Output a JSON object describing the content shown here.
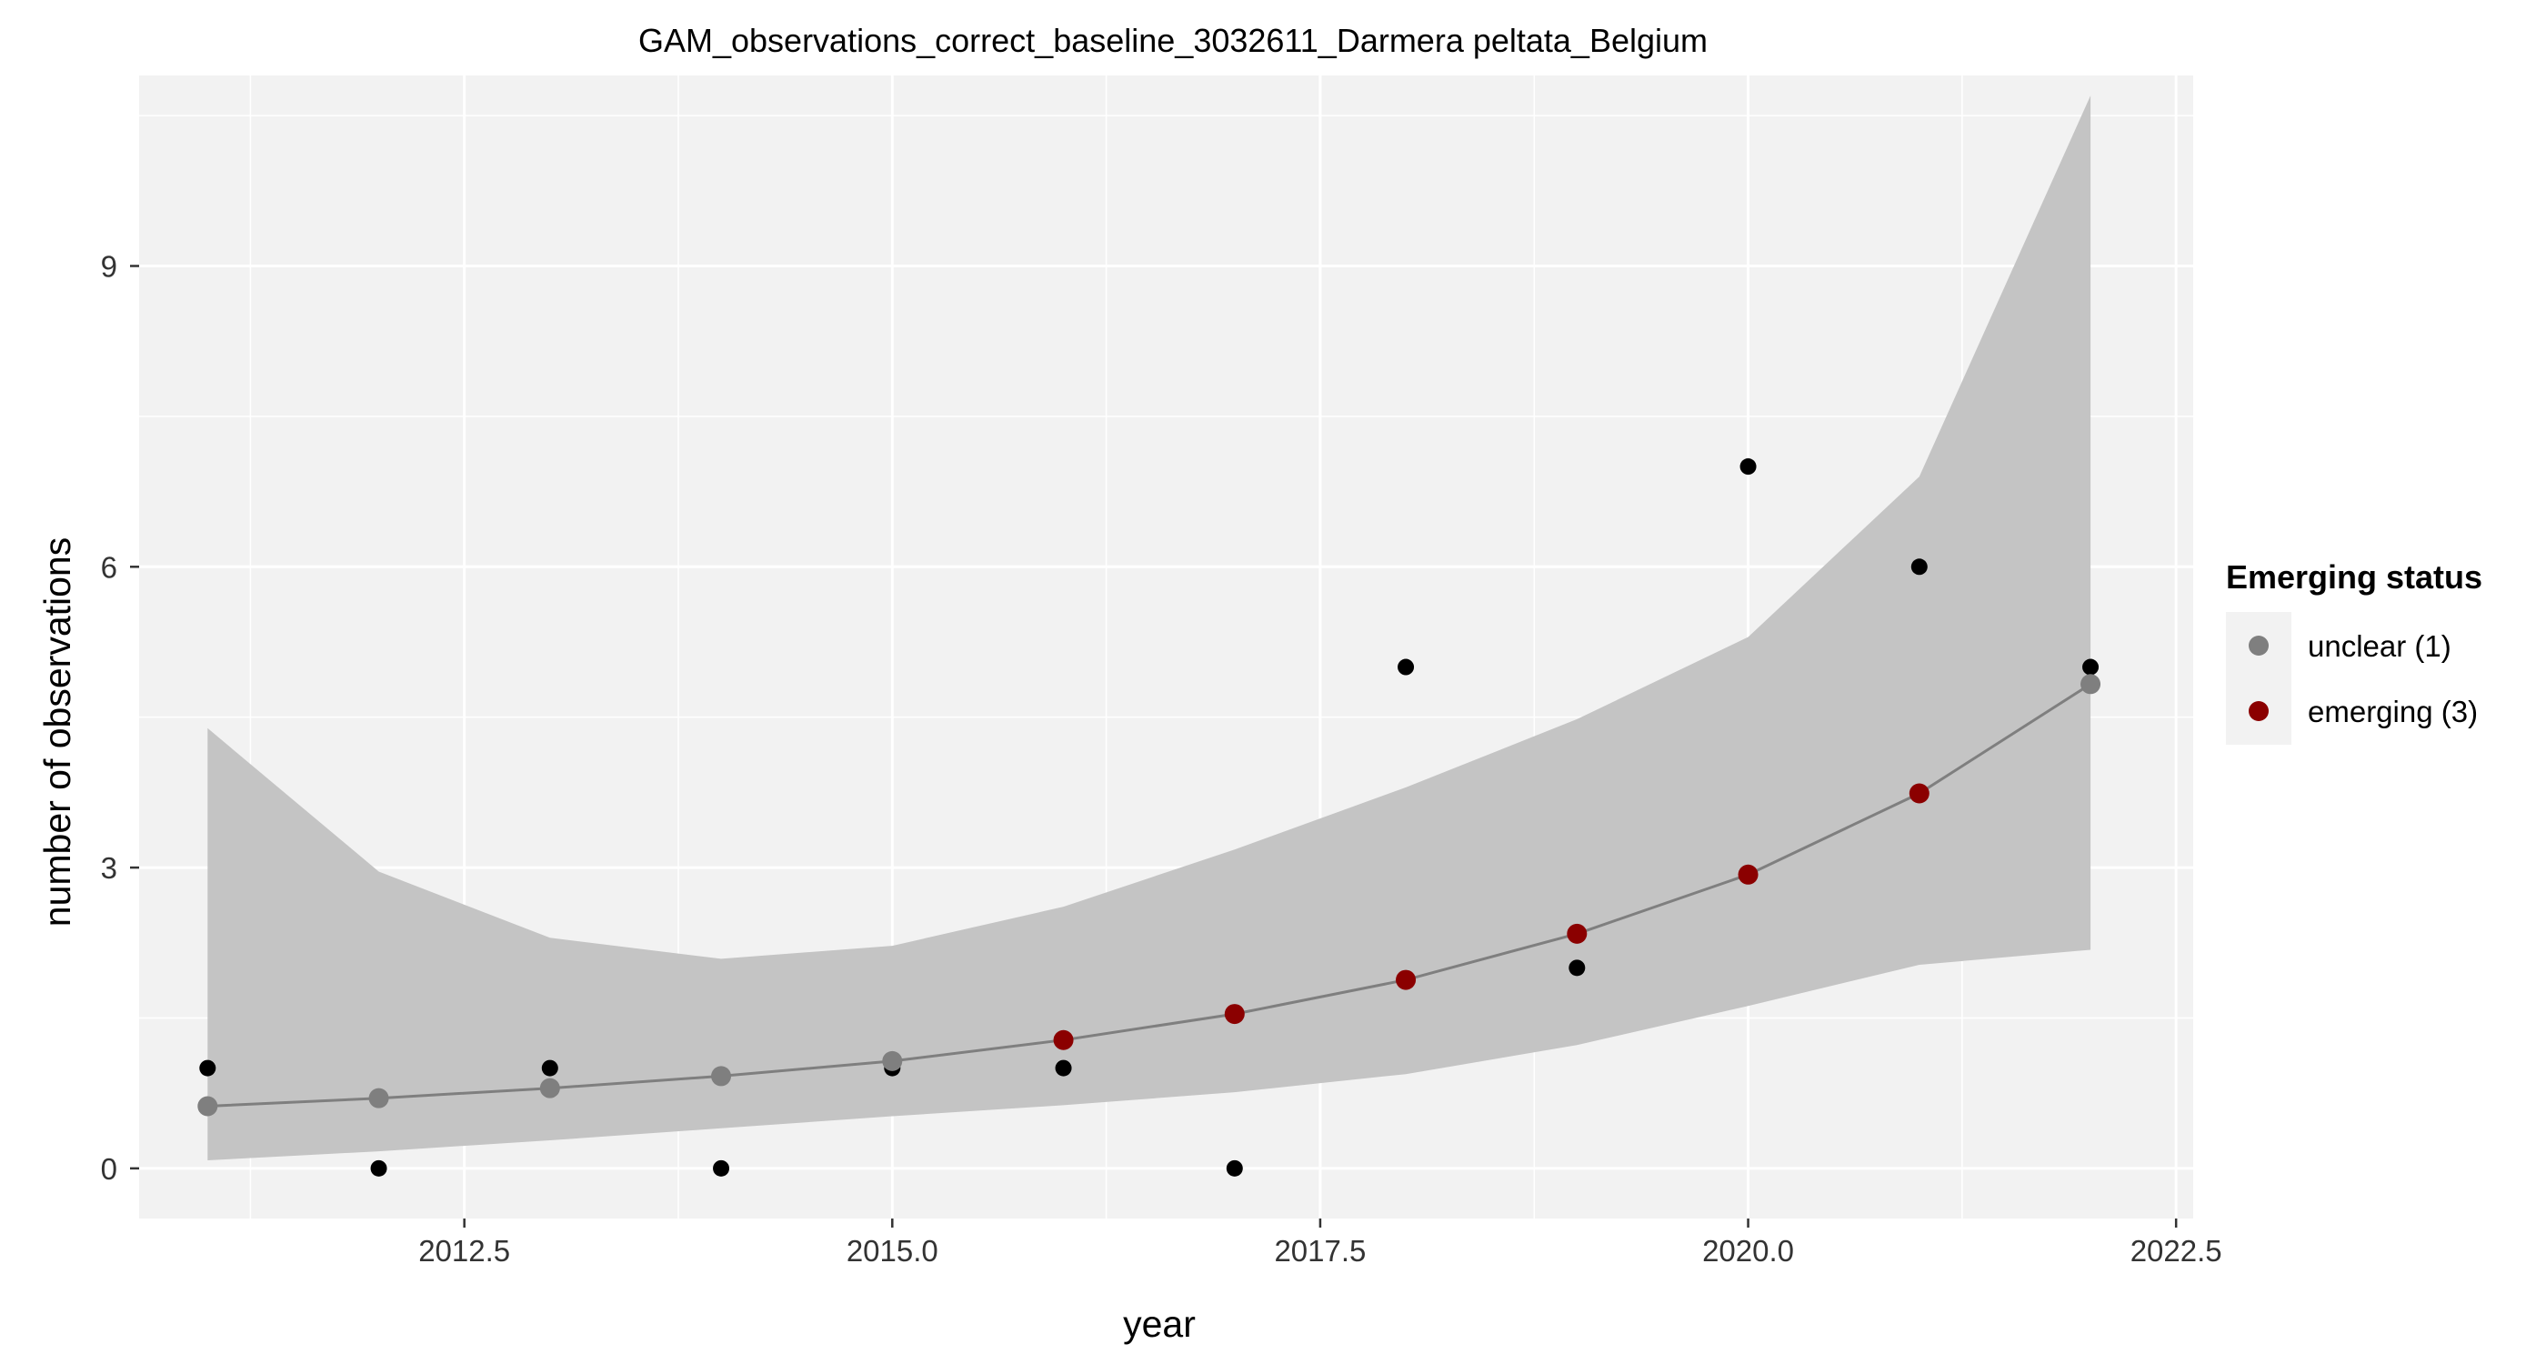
{
  "chart_data": {
    "type": "scatter",
    "title": "GAM_observations_correct_baseline_3032611_Darmera peltata_Belgium",
    "xlabel": "year",
    "ylabel": "number of observations",
    "xlim": [
      2010.6,
      2022.6
    ],
    "ylim": [
      -0.5,
      10.9
    ],
    "x_ticks": [
      2012.5,
      2015.0,
      2017.5,
      2020.0,
      2022.5
    ],
    "x_tick_labels": [
      "2012.5",
      "2015.0",
      "2017.5",
      "2020.0",
      "2022.5"
    ],
    "y_ticks": [
      0,
      3,
      6,
      9
    ],
    "y_tick_labels": [
      "0",
      "3",
      "6",
      "9"
    ],
    "grid": true,
    "panel_background": "#f2f2f2",
    "observations": {
      "x": [
        2011,
        2012,
        2013,
        2014,
        2015,
        2016,
        2017,
        2018,
        2019,
        2020,
        2021,
        2022
      ],
      "y": [
        1,
        0,
        1,
        0,
        1,
        1,
        0,
        5,
        2,
        7,
        6,
        5
      ],
      "color": "#000000"
    },
    "gam_fit": {
      "x": [
        2011,
        2012,
        2013,
        2014,
        2015,
        2016,
        2017,
        2018,
        2019,
        2020,
        2021,
        2022
      ],
      "fit": [
        0.62,
        0.7,
        0.8,
        0.92,
        1.07,
        1.28,
        1.54,
        1.88,
        2.34,
        2.93,
        3.74,
        4.83
      ],
      "lower": [
        0.08,
        0.17,
        0.28,
        0.4,
        0.52,
        0.63,
        0.76,
        0.94,
        1.23,
        1.62,
        2.03,
        2.18
      ],
      "upper": [
        4.39,
        2.96,
        2.3,
        2.09,
        2.22,
        2.61,
        3.18,
        3.8,
        4.48,
        5.3,
        6.9,
        10.7
      ],
      "status": [
        "unclear",
        "unclear",
        "unclear",
        "unclear",
        "unclear",
        "emerging",
        "emerging",
        "emerging",
        "emerging",
        "emerging",
        "emerging",
        "unclear"
      ],
      "line_color": "#7f7f7f",
      "ribbon_color": "#c4c4c4"
    },
    "legend": {
      "title": "Emerging status",
      "placement": "right",
      "entries": [
        {
          "key": "unclear",
          "label": "unclear (1)",
          "color": "#7f7f7f"
        },
        {
          "key": "emerging",
          "label": "emerging (3)",
          "color": "#8b0000"
        }
      ]
    }
  }
}
